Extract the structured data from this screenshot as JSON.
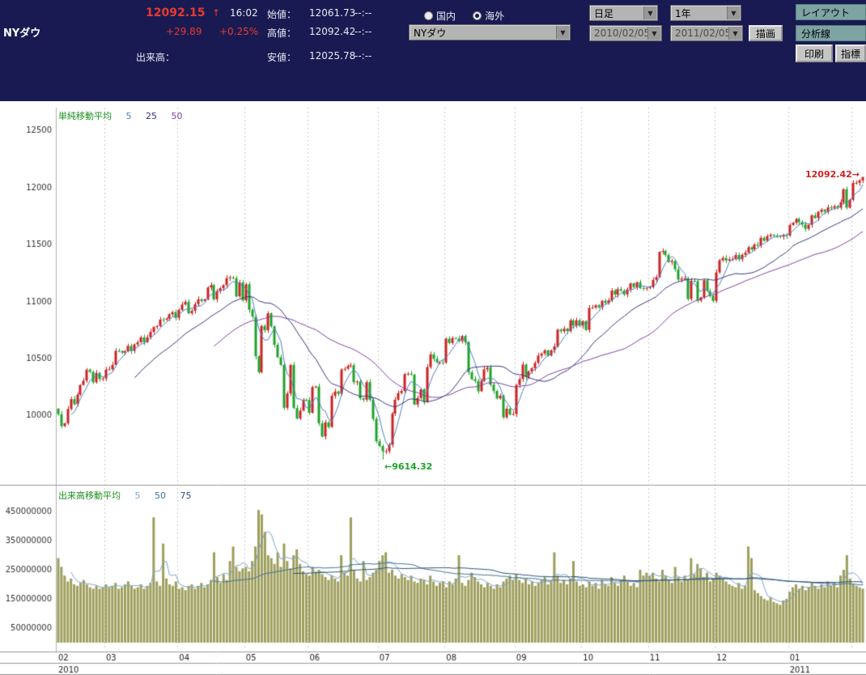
{
  "header": {
    "symbol": "NYダウ",
    "price": "12092.15",
    "arrow": "↑",
    "time": "16:02",
    "change": "+29.89",
    "change_pct": "+0.25%",
    "volume_label": "出来高：",
    "open_label": "始値：",
    "open": "12061.73",
    "open_time": "--:--",
    "high_label": "高値：",
    "high": "12092.42",
    "high_time": "--:--",
    "low_label": "安値：",
    "low": "12025.78",
    "low_time": "--:--",
    "radio_domestic": "国内",
    "radio_overseas": "海外",
    "symbol_select": "NYダウ",
    "period_select": "日足",
    "range_select": "1年",
    "date_from": "2010/02/05",
    "date_to": "2011/02/05",
    "draw_button": "描画",
    "layout_button": "レイアウト",
    "analysis_button": "分析線",
    "print_button": "印刷",
    "indicator_button": "指標"
  },
  "price_panel": {
    "legend_label": "単純移動平均",
    "legend_periods": [
      "5",
      "25",
      "50"
    ],
    "annotation_high": "12092.42→",
    "annotation_low": "←9614.32",
    "y_ticks": [
      12500,
      12000,
      11500,
      11000,
      10500,
      10000
    ]
  },
  "volume_panel": {
    "legend_label": "出来高移動平均",
    "legend_periods": [
      "5",
      "50",
      "75"
    ],
    "y_ticks": [
      450000000,
      350000000,
      250000000,
      150000000,
      50000000
    ]
  },
  "x_axis": {
    "month_labels": [
      "02",
      "03",
      "04",
      "05",
      "06",
      "07",
      "08",
      "09",
      "10",
      "11",
      "12",
      "01"
    ],
    "year_left": "2010",
    "year_right": "2011"
  },
  "chart_data": {
    "type": "candlestick",
    "title": "NYダウ 日足 1年",
    "price_ylim": [
      9400,
      12700
    ],
    "volume_ylim": [
      0,
      500000000
    ],
    "volume_unit": 1000000,
    "ma_periods": [
      5,
      25,
      50
    ],
    "volume_ma_periods": [
      5,
      50,
      75
    ],
    "month_start_indices": [
      0,
      15,
      38,
      59,
      79,
      101,
      122,
      144,
      165,
      186,
      207,
      230,
      250
    ],
    "first_open": 10060,
    "low_overrides": {
      "102": 9614.32
    },
    "high_overrides": {
      "253": 12092.42
    },
    "closes": [
      10012,
      9908,
      9932,
      10058,
      10144,
      10099,
      10184,
      10268,
      10306,
      10402,
      10383,
      10292,
      10374,
      10321,
      10325,
      10403,
      10406,
      10444,
      10567,
      10566,
      10552,
      10564,
      10611,
      10567,
      10624,
      10642,
      10686,
      10643,
      10686,
      10734,
      10776,
      10785,
      10842,
      10841,
      10850,
      10888,
      10907,
      10857,
      10927,
      10973,
      10997,
      10897,
      10919,
      10977,
      11019,
      11005,
      11019,
      11123,
      11144,
      11019,
      11092,
      11117,
      11144,
      11205,
      11212,
      11205,
      11045,
      11167,
      11009,
      11151,
      10927,
      10868,
      10520,
      10380,
      10785,
      10748,
      10897,
      10782,
      10620,
      10511,
      10444,
      10068,
      10193,
      10444,
      10066,
      9974,
      10043,
      10137,
      10136,
      10024,
      10250,
      10255,
      9932,
      9816,
      9940,
      9900,
      10173,
      10211,
      10190,
      10404,
      10410,
      10434,
      10442,
      10293,
      10298,
      10152,
      10139,
      10293,
      10139,
      9971,
      9774,
      9733,
      9686,
      9687,
      9744,
      10018,
      10139,
      10198,
      10216,
      10363,
      10366,
      10359,
      10097,
      10154,
      10230,
      10120,
      10425,
      10537,
      10497,
      10467,
      10468,
      10466,
      10674,
      10636,
      10680,
      10675,
      10653,
      10698,
      10644,
      10379,
      10319,
      10303,
      10213,
      10302,
      10405,
      10420,
      10271,
      10216,
      10150,
      10174,
      9985,
      10060,
      10009,
      10014,
      10269,
      10320,
      10447,
      10340,
      10387,
      10415,
      10462,
      10526,
      10544,
      10572,
      10526,
      10573,
      10607,
      10753,
      10739,
      10762,
      10740,
      10835,
      10788,
      10836,
      10788,
      10829,
      10751,
      10944,
      10948,
      10967,
      10949,
      11006,
      10987,
      11010,
      11096,
      11062,
      11108,
      11094,
      11062,
      11107,
      11159,
      11126,
      11169,
      11118,
      11114,
      11118,
      11125,
      11189,
      11215,
      11435,
      11444,
      11407,
      11346,
      11357,
      11283,
      11192,
      11201,
      11203,
      11022,
      11181,
      11178,
      11008,
      11036,
      11187,
      11092,
      11052,
      11006,
      11256,
      11362,
      11382,
      11359,
      11370,
      11372,
      11408,
      11370,
      11410,
      11429,
      11476,
      11457,
      11499,
      11491,
      11559,
      11533,
      11573,
      11585,
      11577,
      11575,
      11569,
      11585,
      11578,
      11671,
      11691,
      11723,
      11697,
      11675,
      11637,
      11672,
      11755,
      11732,
      11787,
      11806,
      11787,
      11825,
      11822,
      11837,
      11823,
      11871,
      11985,
      11823,
      11892,
      12040,
      12041,
      12062,
      12092.15
    ],
    "volumes_millions": [
      290,
      260,
      230,
      210,
      220,
      200,
      195,
      205,
      215,
      200,
      190,
      185,
      195,
      185,
      190,
      200,
      190,
      195,
      205,
      185,
      190,
      200,
      210,
      195,
      185,
      190,
      200,
      185,
      195,
      205,
      430,
      210,
      195,
      340,
      220,
      200,
      195,
      210,
      185,
      190,
      180,
      195,
      200,
      185,
      195,
      205,
      190,
      200,
      215,
      310,
      225,
      205,
      235,
      215,
      280,
      330,
      260,
      245,
      255,
      260,
      245,
      280,
      330,
      455,
      440,
      380,
      300,
      290,
      270,
      310,
      260,
      340,
      280,
      255,
      300,
      320,
      270,
      245,
      235,
      230,
      260,
      240,
      250,
      235,
      225,
      215,
      230,
      220,
      210,
      300,
      240,
      230,
      430,
      250,
      220,
      210,
      280,
      215,
      225,
      240,
      250,
      280,
      300,
      310,
      240,
      250,
      230,
      220,
      235,
      225,
      215,
      230,
      210,
      205,
      220,
      215,
      200,
      230,
      210,
      195,
      205,
      210,
      190,
      210,
      200,
      220,
      300,
      205,
      195,
      215,
      240,
      225,
      210,
      200,
      190,
      205,
      195,
      185,
      200,
      190,
      210,
      220,
      230,
      215,
      235,
      215,
      205,
      220,
      200,
      210,
      195,
      205,
      215,
      225,
      200,
      210,
      310,
      230,
      205,
      215,
      200,
      220,
      280,
      210,
      195,
      200,
      190,
      210,
      195,
      205,
      185,
      215,
      200,
      195,
      225,
      205,
      195,
      215,
      230,
      210,
      195,
      205,
      190,
      250,
      230,
      240,
      230,
      240,
      220,
      210,
      250,
      230,
      215,
      205,
      260,
      225,
      210,
      230,
      215,
      290,
      235,
      270,
      255,
      225,
      240,
      210,
      220,
      240,
      230,
      220,
      210,
      200,
      195,
      190,
      205,
      185,
      195,
      330,
      290,
      180,
      170,
      160,
      150,
      145,
      155,
      140,
      135,
      130,
      145,
      150,
      175,
      190,
      200,
      185,
      195,
      180,
      190,
      205,
      195,
      185,
      200,
      190,
      210,
      195,
      205,
      190,
      230,
      250,
      300,
      220,
      200,
      195,
      190,
      185
    ],
    "colors": {
      "up": "#cc2222",
      "down": "#1fa32a",
      "volume": "#9e9e5d",
      "ma5": "#4f7fbf",
      "ma25": "#34347f",
      "ma50": "#7f3f9f",
      "vma5": "#7aa7cc",
      "vma50": "#3f6f99",
      "vma75": "#2c4f73",
      "legend": "#1f8f1f",
      "header_bg": "#1a1a52",
      "price_text": "#e63b2e"
    }
  }
}
